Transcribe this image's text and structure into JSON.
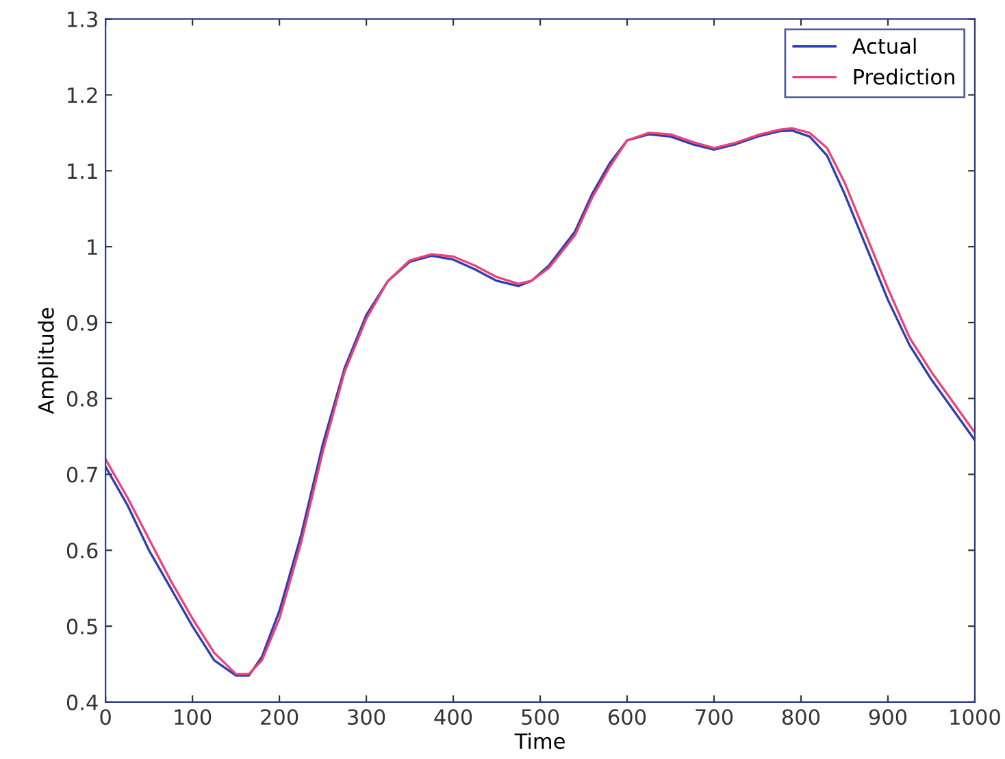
{
  "chart_data": {
    "type": "line",
    "xlabel": "Time",
    "ylabel": "Amplitude",
    "xlim": [
      0,
      1000
    ],
    "xticks": [
      0,
      100,
      200,
      300,
      400,
      500,
      600,
      700,
      800,
      900,
      1000
    ],
    "ylim": [
      0.4,
      1.3
    ],
    "yticks": [
      0.4,
      0.5,
      0.6,
      0.7,
      0.8,
      0.9,
      1,
      1.1,
      1.2,
      1.3
    ],
    "grid": false,
    "legend": "top right",
    "line_style": "solid",
    "marker": "none",
    "series": [
      {
        "name": "Actual",
        "color": "#2a3fb0",
        "x": [
          0,
          25,
          50,
          75,
          100,
          125,
          150,
          165,
          180,
          200,
          225,
          250,
          275,
          300,
          325,
          350,
          375,
          400,
          425,
          450,
          475,
          490,
          510,
          540,
          560,
          580,
          600,
          625,
          650,
          675,
          700,
          725,
          750,
          775,
          790,
          810,
          830,
          850,
          875,
          900,
          925,
          950,
          975,
          1000
        ],
        "values": [
          0.71,
          0.66,
          0.6,
          0.55,
          0.5,
          0.455,
          0.435,
          0.435,
          0.46,
          0.52,
          0.62,
          0.74,
          0.84,
          0.91,
          0.955,
          0.98,
          0.988,
          0.983,
          0.97,
          0.955,
          0.948,
          0.955,
          0.975,
          1.02,
          1.07,
          1.11,
          1.14,
          1.148,
          1.145,
          1.135,
          1.128,
          1.135,
          1.145,
          1.152,
          1.153,
          1.145,
          1.12,
          1.07,
          1.0,
          0.93,
          0.87,
          0.825,
          0.785,
          0.745
        ]
      },
      {
        "name": "Prediction",
        "color": "#f0407a",
        "x": [
          0,
          25,
          50,
          75,
          100,
          125,
          150,
          165,
          180,
          200,
          225,
          250,
          275,
          300,
          325,
          350,
          375,
          400,
          425,
          450,
          475,
          490,
          510,
          540,
          560,
          580,
          600,
          625,
          650,
          675,
          700,
          725,
          750,
          775,
          790,
          810,
          830,
          850,
          875,
          900,
          925,
          950,
          975,
          1000
        ],
        "values": [
          0.72,
          0.67,
          0.615,
          0.56,
          0.51,
          0.465,
          0.437,
          0.437,
          0.455,
          0.51,
          0.61,
          0.73,
          0.835,
          0.905,
          0.955,
          0.982,
          0.99,
          0.987,
          0.975,
          0.96,
          0.951,
          0.955,
          0.972,
          1.015,
          1.065,
          1.105,
          1.14,
          1.15,
          1.148,
          1.138,
          1.13,
          1.137,
          1.147,
          1.154,
          1.156,
          1.15,
          1.13,
          1.085,
          1.015,
          0.945,
          0.88,
          0.835,
          0.795,
          0.755
        ]
      }
    ]
  }
}
